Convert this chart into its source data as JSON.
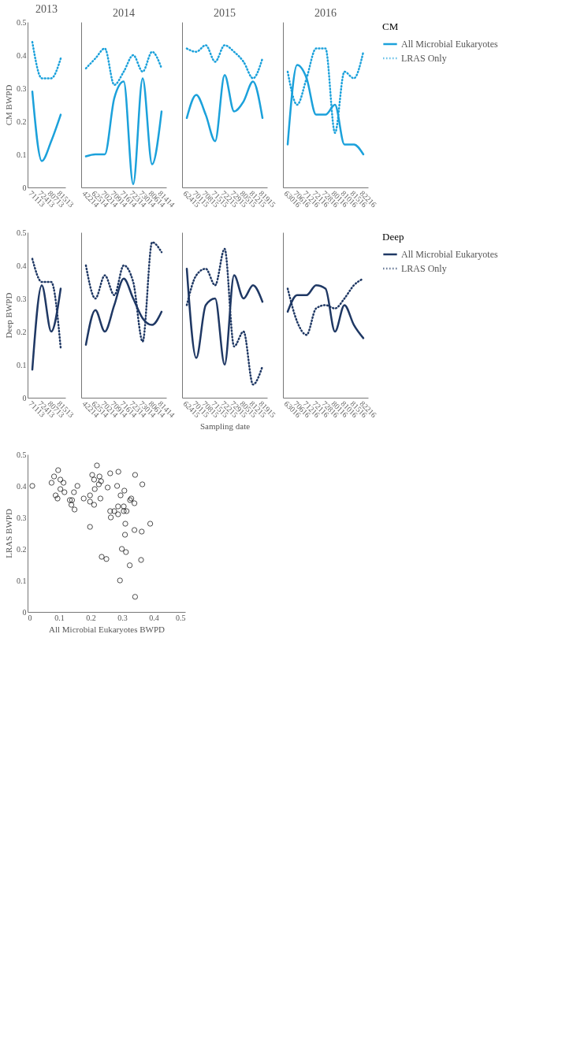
{
  "chart_data": [
    {
      "type": "line",
      "title": "2013",
      "ylabel": "CM BWPD",
      "categories": [
        "71113",
        "72413",
        "80713",
        "81513"
      ],
      "ylim": [
        0,
        0.5
      ],
      "yticks": [
        0,
        0.1,
        0.2,
        0.3,
        0.4,
        0.5
      ],
      "grid": false,
      "series": [
        {
          "color": "#1ba1db",
          "line_style": "solid",
          "values": [
            0.29,
            0.08,
            0.14,
            0.22
          ]
        },
        {
          "color": "#1ba1db",
          "line_style": "dotted",
          "values": [
            0.44,
            0.33,
            0.33,
            0.39
          ]
        }
      ]
    },
    {
      "type": "line",
      "title": "2014",
      "tick_labels": "x",
      "categories": [
        "42214",
        "62514",
        "70214",
        "70914",
        "71614",
        "72314",
        "73014",
        "80614",
        "81414"
      ],
      "ylim": [
        0,
        0.5
      ],
      "yticks": [
        0,
        0.1,
        0.2,
        0.3,
        0.4,
        0.5
      ],
      "grid": false,
      "series": [
        {
          "color": "#1ba1db",
          "line_style": "solid",
          "values": [
            0.094,
            0.1,
            0.1,
            0.27,
            0.32,
            0.01,
            0.33,
            0.07,
            0.23
          ]
        },
        {
          "color": "#1ba1db",
          "line_style": "dotted",
          "values": [
            0.36,
            0.39,
            0.42,
            0.31,
            0.35,
            0.4,
            0.35,
            0.41,
            0.36
          ]
        }
      ]
    },
    {
      "type": "line",
      "title": "2015",
      "tick_labels": "x",
      "categories": [
        "62415",
        "70115",
        "70815",
        "71515",
        "72215",
        "72915",
        "80515",
        "81215",
        "81915"
      ],
      "ylim": [
        0,
        0.5
      ],
      "yticks": [
        0,
        0.1,
        0.2,
        0.3,
        0.4,
        0.5
      ],
      "grid": false,
      "series": [
        {
          "color": "#1ba1db",
          "line_style": "solid",
          "values": [
            0.21,
            0.28,
            0.22,
            0.14,
            0.34,
            0.23,
            0.26,
            0.32,
            0.21
          ]
        },
        {
          "color": "#1ba1db",
          "line_style": "dotted",
          "values": [
            0.42,
            0.41,
            0.43,
            0.38,
            0.43,
            0.41,
            0.38,
            0.33,
            0.39
          ]
        }
      ]
    },
    {
      "type": "line",
      "title": "2016",
      "tick_labels": "x",
      "legend": "right",
      "legend_title": "CM",
      "categories": [
        "63016",
        "70616",
        "71216",
        "72116",
        "72816",
        "80116",
        "81016",
        "81516",
        "82216"
      ],
      "ylim": [
        0,
        0.5
      ],
      "yticks": [
        0,
        0.1,
        0.2,
        0.3,
        0.4,
        0.5
      ],
      "grid": false,
      "series": [
        {
          "name": "All Microbial Eukaryotes",
          "color": "#1ba1db",
          "line_style": "solid",
          "values": [
            0.13,
            0.37,
            0.33,
            0.22,
            0.22,
            0.25,
            0.13,
            0.13,
            0.1
          ]
        },
        {
          "name": "LRAS Only",
          "color": "#1ba1db",
          "line_style": "dotted",
          "values": [
            0.35,
            0.25,
            0.33,
            0.42,
            0.42,
            0.165,
            0.35,
            0.33,
            0.41
          ]
        }
      ]
    },
    {
      "type": "line",
      "ylabel": "Deep BWPD",
      "categories": [
        "71113",
        "72413",
        "80713",
        "81513"
      ],
      "ylim": [
        0,
        0.5
      ],
      "yticks": [
        0,
        0.1,
        0.2,
        0.3,
        0.4,
        0.5
      ],
      "grid": false,
      "series": [
        {
          "color": "#1f3864",
          "line_style": "solid",
          "values": [
            0.085,
            0.34,
            0.2,
            0.33
          ]
        },
        {
          "color": "#1f3864",
          "line_style": "dotted",
          "values": [
            0.42,
            0.35,
            0.35,
            0.15
          ]
        }
      ]
    },
    {
      "type": "line",
      "tick_labels": "x",
      "categories": [
        "42214",
        "62514",
        "70214",
        "70914",
        "71614",
        "72314",
        "73014",
        "80614",
        "81414"
      ],
      "ylim": [
        0,
        0.5
      ],
      "yticks": [
        0,
        0.1,
        0.2,
        0.3,
        0.4,
        0.5
      ],
      "grid": false,
      "series": [
        {
          "color": "#1f3864",
          "line_style": "solid",
          "values": [
            0.16,
            0.265,
            0.2,
            0.28,
            0.36,
            0.3,
            0.24,
            0.22,
            0.26
          ]
        },
        {
          "color": "#1f3864",
          "line_style": "dotted",
          "values": [
            0.4,
            0.3,
            0.37,
            0.31,
            0.4,
            0.35,
            0.17,
            0.47,
            0.44
          ]
        }
      ]
    },
    {
      "type": "line",
      "tick_labels": "x",
      "xlabel": "Sampling date",
      "categories": [
        "62415",
        "70115",
        "70815",
        "71515",
        "72215",
        "72915",
        "80515",
        "81215",
        "81915"
      ],
      "ylim": [
        0,
        0.5
      ],
      "yticks": [
        0,
        0.1,
        0.2,
        0.3,
        0.4,
        0.5
      ],
      "grid": false,
      "series": [
        {
          "color": "#1f3864",
          "line_style": "solid",
          "values": [
            0.39,
            0.12,
            0.28,
            0.3,
            0.1,
            0.37,
            0.3,
            0.34,
            0.29
          ]
        },
        {
          "color": "#1f3864",
          "line_style": "dotted",
          "values": [
            0.28,
            0.37,
            0.39,
            0.34,
            0.45,
            0.155,
            0.2,
            0.04,
            0.095
          ]
        }
      ]
    },
    {
      "type": "line",
      "tick_labels": "x",
      "legend": "right",
      "legend_title": "Deep",
      "categories": [
        "63016",
        "70616",
        "71216",
        "72116",
        "72816",
        "80116",
        "81016",
        "81516",
        "82216"
      ],
      "ylim": [
        0,
        0.5
      ],
      "yticks": [
        0,
        0.1,
        0.2,
        0.3,
        0.4,
        0.5
      ],
      "grid": false,
      "series": [
        {
          "name": "All Microbial Eukaryotes",
          "color": "#1f3864",
          "line_style": "solid",
          "values": [
            0.26,
            0.31,
            0.31,
            0.34,
            0.33,
            0.2,
            0.28,
            0.22,
            0.18
          ]
        },
        {
          "name": "LRAS Only",
          "color": "#1f3864",
          "line_style": "dotted",
          "values": [
            0.33,
            0.23,
            0.19,
            0.27,
            0.28,
            0.27,
            0.3,
            0.34,
            0.36
          ]
        }
      ]
    },
    {
      "type": "scatter",
      "xlabel": "All Microbial Eukaryotes BWPD",
      "ylabel": "LRAS BWPD",
      "marker": "circle",
      "grid": false,
      "xlim": [
        0,
        0.5
      ],
      "xticks": [
        0,
        0.1,
        0.2,
        0.3,
        0.4,
        0.5
      ],
      "ylim": [
        0,
        0.5
      ],
      "yticks": [
        0,
        0.1,
        0.2,
        0.3,
        0.4,
        0.5
      ],
      "series": [
        {
          "color": "#000000",
          "x": [
            0.015,
            0.076,
            0.084,
            0.097,
            0.089,
            0.095,
            0.104,
            0.104,
            0.114,
            0.117,
            0.139,
            0.134,
            0.149,
            0.141,
            0.147,
            0.158,
            0.178,
            0.198,
            0.198,
            0.198,
            0.211,
            0.213,
            0.211,
            0.205,
            0.22,
            0.226,
            0.228,
            0.233,
            0.231,
            0.235,
            0.25,
            0.254,
            0.262,
            0.264,
            0.262,
            0.275,
            0.284,
            0.288,
            0.287,
            0.287,
            0.293,
            0.295,
            0.299,
            0.305,
            0.305,
            0.307,
            0.309,
            0.31,
            0.312,
            0.314,
            0.324,
            0.325,
            0.329,
            0.339,
            0.339,
            0.341,
            0.341,
            0.362,
            0.36,
            0.364,
            0.389
          ],
          "values": [
            0.4,
            0.41,
            0.43,
            0.45,
            0.37,
            0.36,
            0.39,
            0.42,
            0.41,
            0.38,
            0.34,
            0.355,
            0.325,
            0.355,
            0.38,
            0.4,
            0.36,
            0.27,
            0.35,
            0.37,
            0.34,
            0.39,
            0.42,
            0.435,
            0.465,
            0.405,
            0.43,
            0.415,
            0.36,
            0.175,
            0.168,
            0.395,
            0.44,
            0.3,
            0.32,
            0.32,
            0.4,
            0.445,
            0.31,
            0.335,
            0.1,
            0.37,
            0.2,
            0.32,
            0.335,
            0.385,
            0.245,
            0.28,
            0.19,
            0.32,
            0.148,
            0.355,
            0.36,
            0.26,
            0.345,
            0.435,
            0.048,
            0.255,
            0.165,
            0.405,
            0.28
          ]
        }
      ]
    }
  ]
}
